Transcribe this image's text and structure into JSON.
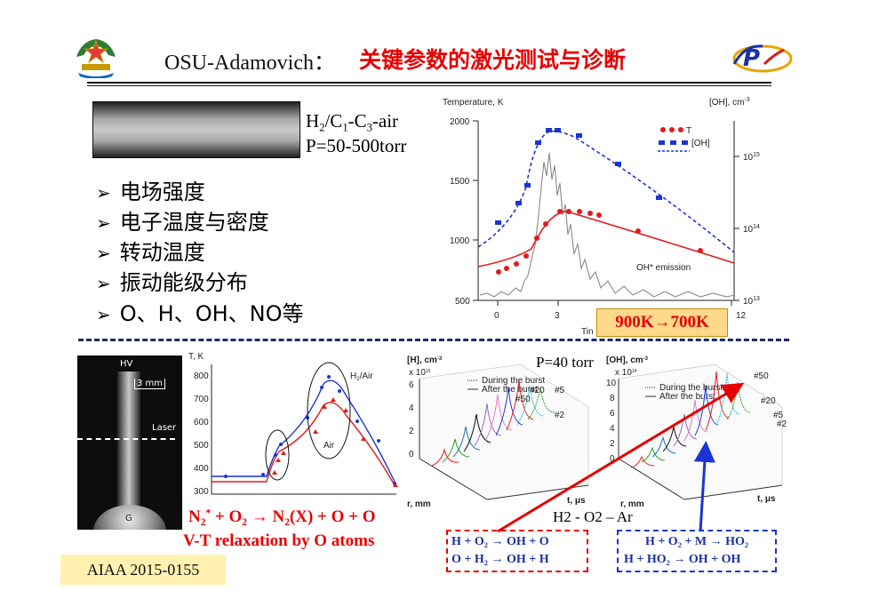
{
  "header": {
    "title_prefix": "OSU-Adamovich：",
    "title_cn": "关键参数的激光测试与诊断"
  },
  "sample": {
    "mixture_line1_parts": [
      "H",
      "2",
      "/C",
      "1",
      "-C",
      "3",
      "-air"
    ],
    "pressure": "P=50-500torr"
  },
  "bullets": [
    "电场强度",
    "电子温度与密度",
    "转动温度",
    "振动能级分布",
    "O、H、OH、NO等"
  ],
  "temperature_chart": {
    "ylabel_left": "Temperature, K",
    "ylabel_right": "[OH], cm",
    "ylabel_right_exp": "-3",
    "yticks_left": [
      "2000",
      "1500",
      "1000",
      "500"
    ],
    "xticks": [
      "0",
      "3",
      "12"
    ],
    "xlabel_partial": "Tin",
    "right_ticks": [
      {
        "base": "10",
        "exp": "15"
      },
      {
        "base": "10",
        "exp": "14"
      },
      {
        "base": "10",
        "exp": "13"
      }
    ],
    "legend": [
      "T",
      "[OH]"
    ],
    "emission_label": "OH* emission",
    "highlight": "900K→700K",
    "colors": {
      "T": "#e31a1c",
      "OH": "#1a34d6",
      "emission": "#808080",
      "highlight_bg": "#ffd98a"
    }
  },
  "discharge_image": {
    "hv_label": "HV",
    "scale_label": "3 mm",
    "laser_label": "Laser",
    "g_label": "G"
  },
  "relax_chart": {
    "ylabel": "T, K",
    "yticks": [
      "800",
      "700",
      "600",
      "500",
      "400",
      "300"
    ],
    "series_labels": [
      "H",
      "2",
      "/Air",
      "Air"
    ],
    "colors": {
      "H2Air": "#1a34d6",
      "Air": "#e31a1c"
    }
  },
  "reaction_text": {
    "line1_parts": [
      "N",
      "2",
      "*",
      " + O",
      "2",
      " → N",
      "2",
      "(X) + O + O"
    ],
    "line2": "V-T relaxation by O atoms"
  },
  "h_chart": {
    "title": "[H], cm",
    "title_exp": "-3",
    "scale": "x 10",
    "scale_exp": "15",
    "legend": [
      "During the burst",
      "After the burst"
    ],
    "zticks": [
      "6",
      "4",
      "2",
      "0"
    ],
    "r_label": "r, mm",
    "t_label": "t, μs",
    "pulse_labels": [
      "#50",
      "#20",
      "#5",
      "#2"
    ]
  },
  "oh_chart": {
    "title": "[OH], cm",
    "title_exp": "-3",
    "scale": "x 10",
    "scale_exp": "14",
    "legend": [
      "During the burst",
      "After the burst"
    ],
    "zticks": [
      "10",
      "8",
      "6",
      "4",
      "2",
      "0"
    ],
    "r_label": "r, mm",
    "t_label": "t, μs",
    "pulse_labels": [
      "#50",
      "#20",
      "#5",
      "#2"
    ]
  },
  "pressure_label": "P=40 torr",
  "mixture_label": "H2 - O2 – Ar",
  "reactions_red": [
    "H + O₂  →  OH + O",
    "O + H₂  →  OH + H"
  ],
  "reactions_blue": [
    "H + O₂ + M → HO₂",
    "H + HO₂  →  OH + OH"
  ],
  "citation": "AIAA 2015-0155"
}
